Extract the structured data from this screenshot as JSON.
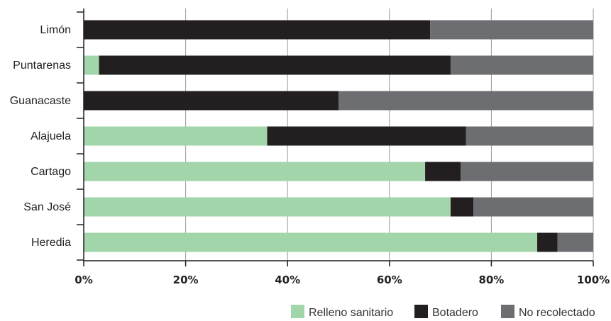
{
  "chart_data": {
    "type": "bar",
    "orientation": "horizontal",
    "stacked": true,
    "categories": [
      "Limón",
      "Puntarenas",
      "Guanacaste",
      "Alajuela",
      "Cartago",
      "San José",
      "Heredia"
    ],
    "series": [
      {
        "name": "Relleno sanitario",
        "color": "#a3d5ab",
        "values": [
          0,
          3,
          0,
          36,
          67,
          72,
          89
        ]
      },
      {
        "name": "Botadero",
        "color": "#231f20",
        "values": [
          68,
          69,
          50,
          39,
          7,
          4.5,
          4
        ]
      },
      {
        "name": "No recolectado",
        "color": "#6d6e71",
        "values": [
          32,
          28,
          50,
          25,
          26,
          23.5,
          7
        ]
      }
    ],
    "x_ticks": [
      "0%",
      "20%",
      "40%",
      "60%",
      "80%",
      "100%"
    ],
    "xlim": [
      0,
      100
    ],
    "grid": "vertical",
    "legend_position": "bottom-right",
    "title": "",
    "xlabel": "",
    "ylabel": ""
  }
}
